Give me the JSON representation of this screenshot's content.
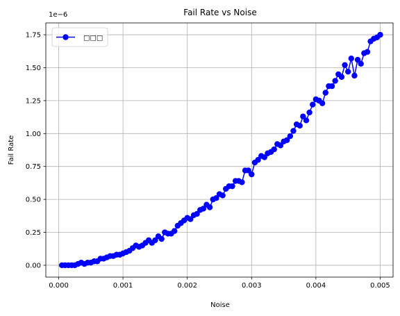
{
  "chart_data": {
    "type": "line",
    "title": "Fail Rate vs Noise",
    "xlabel": "Noise",
    "ylabel": "Fail Rate",
    "y_offset_text": "1e−6",
    "y_scale": 1e-06,
    "xlim": [
      -0.0002,
      0.0052
    ],
    "ylim": [
      -9e-08,
      1.84e-06
    ],
    "x_ticks": [
      0.0,
      0.001,
      0.002,
      0.003,
      0.004,
      0.005
    ],
    "x_tick_labels": [
      "0.000",
      "0.001",
      "0.002",
      "0.003",
      "0.004",
      "0.005"
    ],
    "y_ticks": [
      0.0,
      2.5e-07,
      5e-07,
      7.5e-07,
      1e-06,
      1.25e-06,
      1.5e-06,
      1.75e-06
    ],
    "y_tick_labels": [
      "0.00",
      "0.25",
      "0.50",
      "0.75",
      "1.00",
      "1.25",
      "1.50",
      "1.75"
    ],
    "grid": true,
    "legend_position": "top-left",
    "series": [
      {
        "name": "□□□",
        "color": "#0000ff",
        "marker": "circle",
        "x": [
          5e-05,
          0.0001,
          0.00015,
          0.0002,
          0.00025,
          0.0003,
          0.00035,
          0.0004,
          0.00045,
          0.0005,
          0.00055,
          0.0006,
          0.00065,
          0.0007,
          0.00075,
          0.0008,
          0.00085,
          0.0009,
          0.00095,
          0.001,
          0.00105,
          0.0011,
          0.00115,
          0.0012,
          0.00125,
          0.0013,
          0.00135,
          0.0014,
          0.00145,
          0.0015,
          0.00155,
          0.0016,
          0.00165,
          0.0017,
          0.00175,
          0.0018,
          0.00185,
          0.0019,
          0.00195,
          0.002,
          0.00205,
          0.0021,
          0.00215,
          0.0022,
          0.00225,
          0.0023,
          0.00235,
          0.0024,
          0.00245,
          0.0025,
          0.00255,
          0.0026,
          0.00265,
          0.0027,
          0.00275,
          0.0028,
          0.00285,
          0.0029,
          0.00295,
          0.003,
          0.00305,
          0.0031,
          0.00315,
          0.0032,
          0.00325,
          0.0033,
          0.00335,
          0.0034,
          0.00345,
          0.0035,
          0.00355,
          0.0036,
          0.00365,
          0.0037,
          0.00375,
          0.0038,
          0.00385,
          0.0039,
          0.00395,
          0.004,
          0.00405,
          0.0041,
          0.00415,
          0.0042,
          0.00425,
          0.0043,
          0.00435,
          0.0044,
          0.00445,
          0.0045,
          0.00455,
          0.0046,
          0.00465,
          0.0047,
          0.00475,
          0.0048,
          0.00485,
          0.0049,
          0.00495,
          0.005
        ],
        "y": [
          0.0,
          0.0,
          0.0,
          0.0,
          0.0,
          1e-08,
          2e-08,
          1e-08,
          2e-08,
          2e-08,
          3e-08,
          3e-08,
          5e-08,
          5e-08,
          6e-08,
          7e-08,
          7e-08,
          8e-08,
          8e-08,
          9e-08,
          1e-07,
          1.1e-07,
          1.3e-07,
          1.5e-07,
          1.4e-07,
          1.5e-07,
          1.7e-07,
          1.9e-07,
          1.7e-07,
          1.9e-07,
          2.2e-07,
          2e-07,
          2.5e-07,
          2.4e-07,
          2.4e-07,
          2.6e-07,
          3e-07,
          3.2e-07,
          3.4e-07,
          3.6e-07,
          3.5e-07,
          3.8e-07,
          3.9e-07,
          4.2e-07,
          4.3e-07,
          4.6e-07,
          4.4e-07,
          5e-07,
          5.1e-07,
          5.4e-07,
          5.3e-07,
          5.8e-07,
          6e-07,
          6e-07,
          6.4e-07,
          6.4e-07,
          6.3e-07,
          7.2e-07,
          7.2e-07,
          6.9e-07,
          7.8e-07,
          8e-07,
          8.3e-07,
          8.2e-07,
          8.5e-07,
          8.6e-07,
          8.8e-07,
          9.2e-07,
          9.1e-07,
          9.4e-07,
          9.5e-07,
          9.8e-07,
          1.02e-06,
          1.07e-06,
          1.06e-06,
          1.13e-06,
          1.1e-06,
          1.16e-06,
          1.22e-06,
          1.26e-06,
          1.25e-06,
          1.23e-06,
          1.31e-06,
          1.36e-06,
          1.36e-06,
          1.4e-06,
          1.45e-06,
          1.43e-06,
          1.52e-06,
          1.47e-06,
          1.57e-06,
          1.44e-06,
          1.56e-06,
          1.53e-06,
          1.61e-06,
          1.62e-06,
          1.7e-06,
          1.72e-06,
          1.73e-06,
          1.75e-06
        ]
      }
    ]
  }
}
